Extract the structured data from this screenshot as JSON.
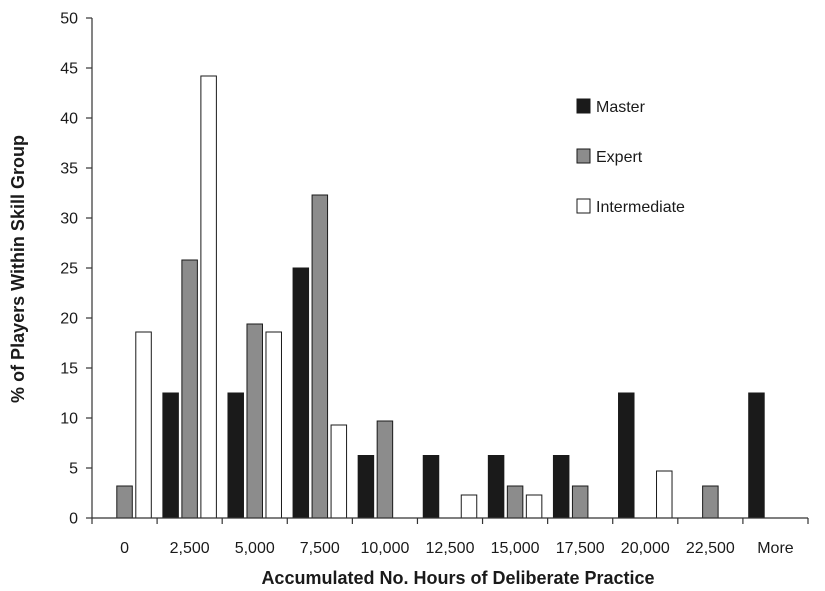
{
  "chart_data": {
    "type": "bar",
    "title": "",
    "xlabel": "Accumulated No. Hours of Deliberate Practice",
    "ylabel": "% of Players Within Skill Group",
    "categories": [
      "0",
      "2,500",
      "5,000",
      "7,500",
      "10,000",
      "12,500",
      "15,000",
      "17,500",
      "20,000",
      "22,500",
      "More"
    ],
    "y_ticks": [
      "0",
      "5",
      "10",
      "15",
      "20",
      "25",
      "30",
      "35",
      "40",
      "45",
      "50"
    ],
    "ylim": [
      0,
      50
    ],
    "grid": false,
    "legend_position": "top-right",
    "series": [
      {
        "name": "Master",
        "color": "#1a1a1a",
        "values": [
          0,
          12.5,
          12.5,
          25,
          6.25,
          6.25,
          6.25,
          6.25,
          12.5,
          0,
          12.5
        ]
      },
      {
        "name": "Expert",
        "color": "#8c8c8c",
        "values": [
          3.2,
          25.8,
          19.4,
          32.3,
          9.7,
          0,
          3.2,
          3.2,
          0,
          3.2,
          0
        ]
      },
      {
        "name": "Intermediate",
        "color": "#ffffff",
        "values": [
          18.6,
          44.2,
          18.6,
          9.3,
          0,
          2.3,
          2.3,
          0,
          4.7,
          0,
          0
        ]
      }
    ]
  }
}
